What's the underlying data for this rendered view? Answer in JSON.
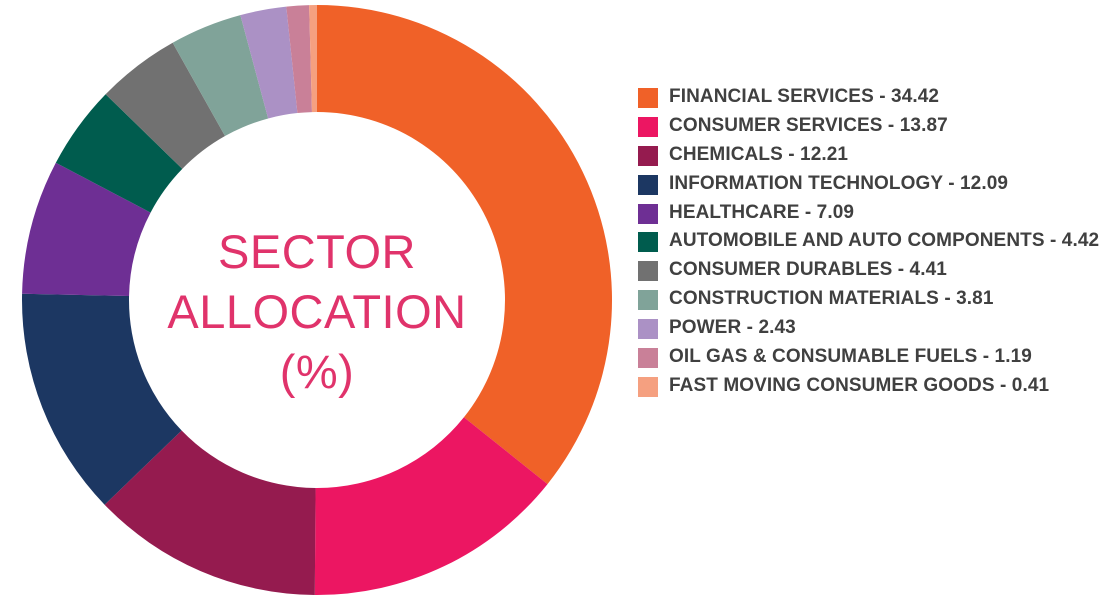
{
  "chart_data": {
    "type": "pie",
    "title_lines": [
      "SECTOR",
      "ALLOCATION",
      "(%)"
    ],
    "title_color": "#e0336b",
    "legend_position": "right",
    "slices": [
      {
        "label": "FINANCIAL SERVICES - 34.42",
        "value": 34.42,
        "color": "#f06128"
      },
      {
        "label": "CONSUMER SERVICES - 13.87",
        "value": 13.87,
        "color": "#ec1662"
      },
      {
        "label": "CHEMICALS - 12.21",
        "value": 12.21,
        "color": "#951b4f"
      },
      {
        "label": "INFORMATION TECHNOLOGY - 12.09",
        "value": 12.09,
        "color": "#1c3762"
      },
      {
        "label": "HEALTHCARE - 7.09",
        "value": 7.09,
        "color": "#6e2f94"
      },
      {
        "label": "AUTOMOBILE AND AUTO COMPONENTS - 4.42",
        "value": 4.42,
        "color": "#005c4e"
      },
      {
        "label": "CONSUMER DURABLES - 4.41",
        "value": 4.41,
        "color": "#717171"
      },
      {
        "label": "CONSTRUCTION MATERIALS - 3.81",
        "value": 3.81,
        "color": "#80a399"
      },
      {
        "label": "POWER - 2.43",
        "value": 2.43,
        "color": "#ab91c5"
      },
      {
        "label": "OIL GAS & CONSUMABLE FUELS - 1.19",
        "value": 1.19,
        "color": "#c98098"
      },
      {
        "label": "FAST MOVING CONSUMER GOODS - 0.41",
        "value": 0.41,
        "color": "#f5a080"
      }
    ]
  }
}
